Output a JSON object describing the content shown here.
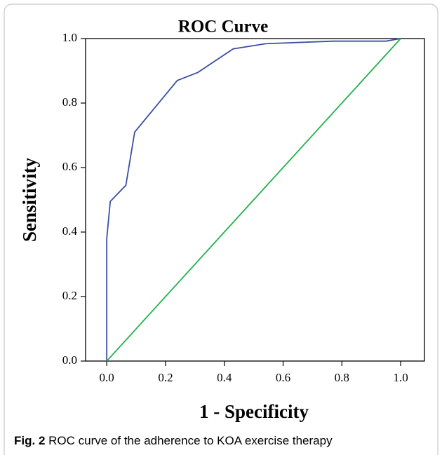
{
  "chart_data": {
    "type": "line",
    "title": "ROC Curve",
    "xlabel": "1 - Specificity",
    "ylabel": "Sensitivity",
    "xlim": [
      -0.072,
      1.081
    ],
    "ylim": [
      0,
      1
    ],
    "xticks": [
      {
        "value": 0,
        "label": "0.0"
      },
      0.2,
      0.4,
      0.6,
      0.8,
      {
        "value": 1,
        "label": "1.0"
      }
    ],
    "yticks": [
      {
        "value": 0,
        "label": "0.0"
      },
      0.2,
      0.4,
      0.6,
      0.8,
      {
        "value": 1,
        "label": "1.0"
      }
    ],
    "series": [
      {
        "color": "#3c4fa3",
        "x": [
          0,
          0,
          0.012,
          0.065,
          0.095,
          0.24,
          0.31,
          0.43,
          0.54,
          0.77,
          0.95,
          1
        ],
        "values": [
          0,
          0.38,
          0.495,
          0.545,
          0.71,
          0.87,
          0.895,
          0.968,
          0.984,
          0.992,
          0.992,
          1
        ]
      },
      {
        "color": "#22b24c",
        "x": [
          0,
          1
        ],
        "values": [
          0,
          1
        ]
      }
    ],
    "caption_label": "Fig. 2",
    "caption": "ROC curve of the adherence to KOA exercise therapy"
  }
}
